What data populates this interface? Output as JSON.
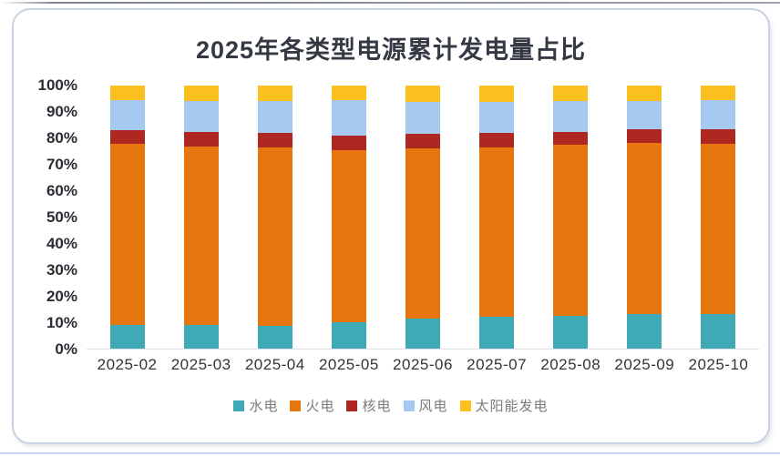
{
  "page": {
    "top_line_color": "#8b92a2",
    "bottom_line_color": "#c3d4f0",
    "card_border_color": "#c9d2e2"
  },
  "chart_data": {
    "type": "bar",
    "variant": "stacked-percent-column",
    "title": "2025年各类型电源累计发电量占比",
    "categories": [
      "2025-02",
      "2025-03",
      "2025-04",
      "2025-05",
      "2025-06",
      "2025-07",
      "2025-08",
      "2025-09",
      "2025-10"
    ],
    "series": [
      {
        "name": "水电",
        "color": "#3FA9B6",
        "values": [
          9.0,
          9.0,
          8.8,
          10.2,
          11.4,
          12.1,
          12.4,
          13.3,
          13.2
        ]
      },
      {
        "name": "火电",
        "color": "#E8760E",
        "values": [
          68.8,
          67.8,
          67.6,
          65.4,
          64.7,
          64.3,
          65.2,
          64.9,
          64.7
        ]
      },
      {
        "name": "核电",
        "color": "#AE2721",
        "values": [
          5.2,
          5.4,
          5.5,
          5.4,
          5.5,
          5.5,
          4.9,
          5.1,
          5.4
        ]
      },
      {
        "name": "风电",
        "color": "#A5C9F0",
        "values": [
          11.5,
          12.1,
          12.1,
          13.5,
          12.3,
          11.8,
          11.5,
          11.0,
          11.2
        ]
      },
      {
        "name": "太阳能发电",
        "color": "#FBBF1E",
        "values": [
          5.5,
          5.7,
          6.0,
          5.5,
          6.1,
          6.3,
          6.0,
          5.7,
          5.5
        ]
      }
    ],
    "y_axis": {
      "min": 0,
      "max": 100,
      "unit": "%",
      "ticks": [
        "100%",
        "90%",
        "80%",
        "70%",
        "60%",
        "50%",
        "40%",
        "30%",
        "20%",
        "10%",
        "0%"
      ]
    },
    "legend_position": "bottom",
    "grid": false
  }
}
